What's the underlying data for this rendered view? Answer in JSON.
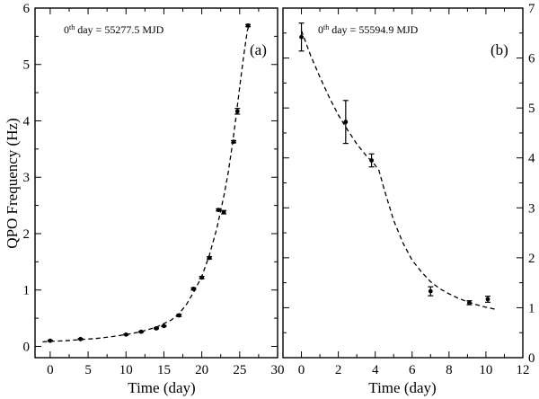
{
  "chart_data": [
    {
      "type": "scatter",
      "panel_label": "(a)",
      "annotation": {
        "prefix": "0",
        "superscript": "th",
        "text": " day = 55277.5 MJD"
      },
      "xlabel": "Time (day)",
      "ylabel": "QPO Frequency (Hz)",
      "xlim": [
        -2,
        30
      ],
      "ylim": [
        -0.2,
        6
      ],
      "xticks": [
        0,
        5,
        10,
        15,
        20,
        25,
        30
      ],
      "yticks": [
        0,
        1,
        2,
        3,
        4,
        5,
        6
      ],
      "points": [
        {
          "x": 0.0,
          "y": 0.1,
          "err": 0.01
        },
        {
          "x": 4.0,
          "y": 0.13,
          "err": 0.01
        },
        {
          "x": 10.0,
          "y": 0.21,
          "err": 0.01
        },
        {
          "x": 12.0,
          "y": 0.26,
          "err": 0.01
        },
        {
          "x": 14.0,
          "y": 0.32,
          "err": 0.01
        },
        {
          "x": 15.0,
          "y": 0.36,
          "err": 0.01
        },
        {
          "x": 17.0,
          "y": 0.55,
          "err": 0.02
        },
        {
          "x": 18.9,
          "y": 1.02,
          "err": 0.02
        },
        {
          "x": 20.0,
          "y": 1.22,
          "err": 0.02
        },
        {
          "x": 21.0,
          "y": 1.57,
          "err": 0.02
        },
        {
          "x": 22.2,
          "y": 2.42,
          "err": 0.02
        },
        {
          "x": 22.9,
          "y": 2.38,
          "err": 0.03
        },
        {
          "x": 24.2,
          "y": 3.63,
          "err": 0.02
        },
        {
          "x": 24.7,
          "y": 4.17,
          "err": 0.05
        },
        {
          "x": 26.1,
          "y": 5.69,
          "err": 0.02
        }
      ],
      "fit_curve": {
        "x": [
          -1,
          0,
          2,
          4,
          6,
          8,
          10,
          12,
          14,
          16,
          17,
          18,
          19,
          20,
          21,
          22,
          23,
          23.5,
          24,
          24.5,
          25,
          25.5,
          26,
          26.3
        ],
        "y": [
          0.08,
          0.09,
          0.1,
          0.12,
          0.14,
          0.17,
          0.21,
          0.26,
          0.34,
          0.47,
          0.58,
          0.75,
          0.98,
          1.24,
          1.62,
          2.1,
          2.72,
          3.1,
          3.55,
          4.05,
          4.6,
          5.12,
          5.6,
          5.72
        ]
      }
    },
    {
      "type": "scatter",
      "panel_label": "(b)",
      "annotation": {
        "prefix": "0",
        "superscript": "th",
        "text": " day = 55594.9 MJD"
      },
      "xlabel": "Time (day)",
      "ylabel": "",
      "xlim": [
        -1,
        12
      ],
      "ylim": [
        0,
        7
      ],
      "xticks": [
        0,
        2,
        4,
        6,
        8,
        10,
        12
      ],
      "yticks": [
        0,
        1,
        2,
        3,
        4,
        5,
        6,
        7
      ],
      "points": [
        {
          "x": 0.0,
          "y": 6.42,
          "err": 0.28
        },
        {
          "x": 2.4,
          "y": 4.72,
          "err": 0.43
        },
        {
          "x": 3.8,
          "y": 3.95,
          "err": 0.13
        },
        {
          "x": 7.0,
          "y": 1.33,
          "err": 0.09
        },
        {
          "x": 9.1,
          "y": 1.1,
          "err": 0.04
        },
        {
          "x": 10.1,
          "y": 1.17,
          "err": 0.06
        }
      ],
      "fit_curve": {
        "x": [
          0,
          0.5,
          1,
          1.5,
          2,
          2.5,
          3,
          3.5,
          3.9,
          4.2,
          4.5,
          5,
          5.5,
          6,
          6.5,
          7,
          7.5,
          8,
          8.5,
          9,
          9.5,
          10,
          10.5
        ],
        "y": [
          6.55,
          6.05,
          5.62,
          5.22,
          4.86,
          4.56,
          4.28,
          4.05,
          3.9,
          3.75,
          3.35,
          2.75,
          2.3,
          1.95,
          1.72,
          1.52,
          1.38,
          1.28,
          1.19,
          1.12,
          1.06,
          1.01,
          0.97
        ]
      }
    }
  ]
}
